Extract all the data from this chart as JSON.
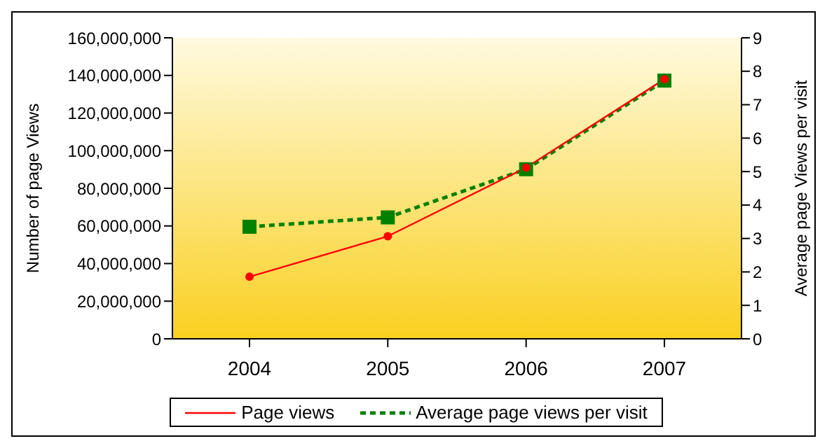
{
  "chart_data": {
    "type": "line",
    "categories": [
      "2004",
      "2005",
      "2006",
      "2007"
    ],
    "xlabel": null,
    "ylabel": "Number of page Views",
    "y2label": "Average page Views per visit",
    "series": [
      {
        "name": "Page views",
        "color": "#ff0000",
        "values": [
          33000000,
          54500000,
          91000000,
          138000000
        ],
        "marker": "circle",
        "line_style": "solid"
      },
      {
        "name": "Average page views per visit",
        "color": "#008000",
        "values": [
          3.35,
          3.63,
          5.07,
          7.72
        ],
        "axis": "y2",
        "marker": "square",
        "line_style": "dashed"
      }
    ],
    "ylim": [
      0,
      160000000
    ],
    "yticks": [
      {
        "value": 0,
        "label": "0"
      },
      {
        "value": 20000000,
        "label": "20,000,000"
      },
      {
        "value": 40000000,
        "label": "40,000,000"
      },
      {
        "value": 60000000,
        "label": "60,000,000"
      },
      {
        "value": 80000000,
        "label": "80,000,000"
      },
      {
        "value": 100000000,
        "label": "100,000,000"
      },
      {
        "value": 120000000,
        "label": "120,000,000"
      },
      {
        "value": 140000000,
        "label": "140,000,000"
      },
      {
        "value": 160000000,
        "label": "160,000,000"
      }
    ],
    "y2lim": [
      0,
      9
    ],
    "y2ticks": [
      0,
      1,
      2,
      3,
      4,
      5,
      6,
      7,
      8,
      9
    ],
    "grid": false,
    "legend": "bottom"
  }
}
